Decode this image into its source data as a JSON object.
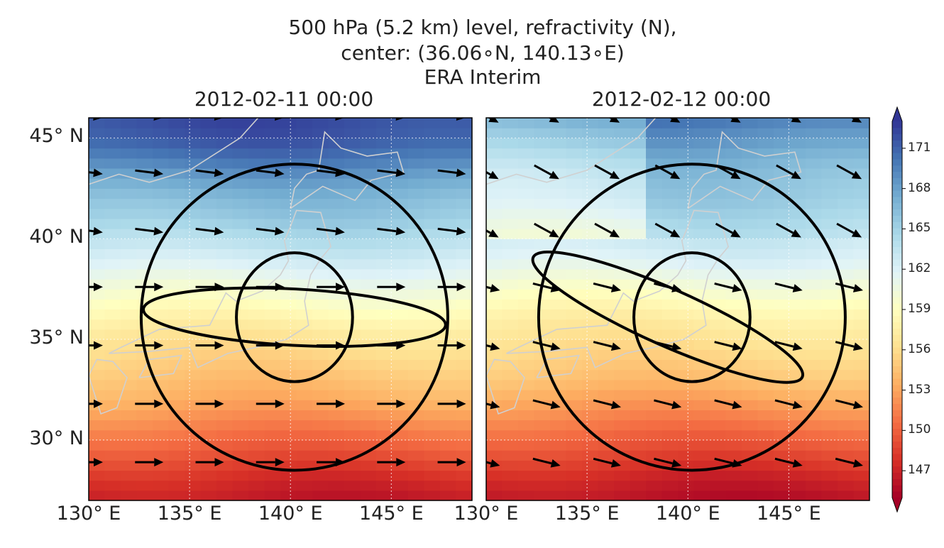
{
  "chart_data": {
    "type": "heatmap",
    "title_lines": [
      "500 hPa (5.2 km) level,  refractivity (N),",
      "center: (36.06∘N, 140.13∘E)",
      "ERA Interim"
    ],
    "lon_range": [
      130,
      149
    ],
    "lat_range": [
      27,
      46
    ],
    "lon_ticks": [
      130,
      135,
      140,
      145
    ],
    "lon_tick_labels": [
      "130° E",
      "135° E",
      "140° E",
      "145° E"
    ],
    "lat_ticks": [
      30,
      35,
      40,
      45
    ],
    "lat_tick_labels": [
      "30° N",
      "35° N",
      "40° N",
      "45° N"
    ],
    "grid": true,
    "colorbar": {
      "vmin": 145,
      "vmax": 173,
      "ticks": [
        147,
        150,
        153,
        156,
        159,
        162,
        165,
        168,
        171
      ],
      "tick_labels": [
        "147",
        "150",
        "153",
        "156",
        "159",
        "162",
        "165",
        "168",
        "171"
      ],
      "colormap": "RdYlBu"
    },
    "center": [
      140.13,
      36.06
    ],
    "panels": [
      {
        "date": "2012-02-11 00:00",
        "refractivity_by_lat": [
          [
            27,
            146.5
          ],
          [
            28,
            147.5
          ],
          [
            29,
            149
          ],
          [
            30,
            150.5
          ],
          [
            31,
            152
          ],
          [
            32,
            153.5
          ],
          [
            33,
            154.5
          ],
          [
            34,
            155.5
          ],
          [
            35,
            156.5
          ],
          [
            36,
            158
          ],
          [
            37,
            159.5
          ],
          [
            38,
            161
          ],
          [
            39,
            162.5
          ],
          [
            40,
            164
          ],
          [
            41,
            165.5
          ],
          [
            42,
            166.5
          ],
          [
            43,
            168
          ],
          [
            44,
            170
          ],
          [
            45,
            171.5
          ],
          [
            46,
            172
          ]
        ],
        "circles": [
          {
            "center_lon": 140.2,
            "center_lat": 36.1,
            "radius_deg": 3.2
          },
          {
            "center_lon": 140.2,
            "center_lat": 36.1,
            "radius_deg": 7.6
          }
        ],
        "ellipse": {
          "center_lon": 140.2,
          "center_lat": 36.1,
          "semi_major_deg": 7.5,
          "semi_minor_deg": 1.4,
          "angle_deg": -3
        },
        "wind": {
          "u": 1.3,
          "v": 0.0,
          "north_u": 1.2,
          "north_v": -0.15
        }
      },
      {
        "date": "2012-02-12 00:00",
        "refractivity_by_lat": [
          [
            27,
            146
          ],
          [
            28,
            147
          ],
          [
            29,
            148.5
          ],
          [
            30,
            150
          ],
          [
            31,
            151.5
          ],
          [
            32,
            153
          ],
          [
            33,
            154.5
          ],
          [
            34,
            155.5
          ],
          [
            35,
            156.5
          ],
          [
            36,
            157.5
          ],
          [
            37,
            159
          ],
          [
            38,
            160.5
          ],
          [
            39,
            162
          ],
          [
            40,
            163
          ],
          [
            41,
            164
          ],
          [
            42,
            165
          ],
          [
            43,
            165.5
          ],
          [
            44,
            166.5
          ],
          [
            45,
            168
          ],
          [
            46,
            169.5
          ]
        ],
        "circles": [
          {
            "center_lon": 140.2,
            "center_lat": 36.1,
            "radius_deg": 3.2
          },
          {
            "center_lon": 140.2,
            "center_lat": 36.1,
            "radius_deg": 7.6
          }
        ],
        "ellipse": {
          "center_lon": 139,
          "center_lat": 36.1,
          "semi_major_deg": 7.3,
          "semi_minor_deg": 1.4,
          "angle_deg": -24
        },
        "wind": {
          "u": 1.2,
          "v": -0.3,
          "north_u": 1.0,
          "north_v": -0.55
        }
      }
    ]
  }
}
